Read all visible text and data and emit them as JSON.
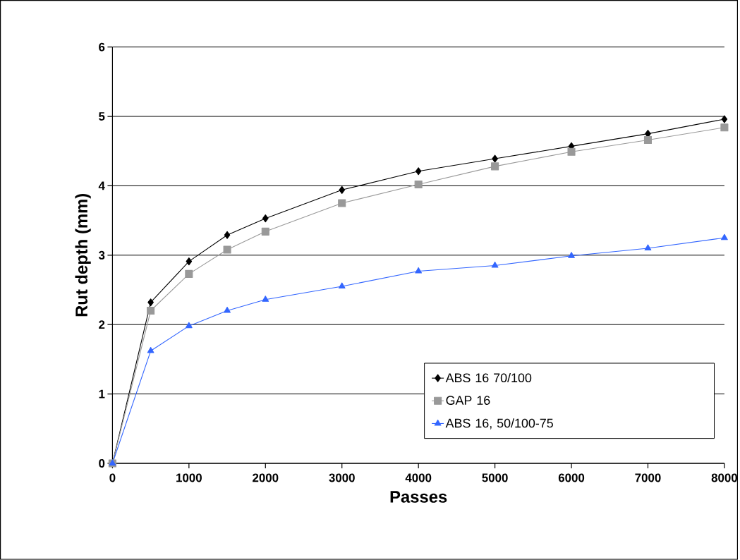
{
  "chart_data": {
    "type": "line",
    "xlabel": "Passes",
    "ylabel": "Rut depth (mm)",
    "x": [
      0,
      500,
      1000,
      1500,
      2000,
      3000,
      4000,
      5000,
      6000,
      7000,
      8000
    ],
    "series": [
      {
        "name": "ABS 16 70/100",
        "color": "#000000",
        "marker": "diamond",
        "values": [
          0,
          2.32,
          2.91,
          3.29,
          3.53,
          3.94,
          4.21,
          4.39,
          4.57,
          4.75,
          4.96
        ]
      },
      {
        "name": "GAP 16",
        "color": "#999999",
        "marker": "square",
        "values": [
          0,
          2.2,
          2.73,
          3.08,
          3.34,
          3.75,
          4.02,
          4.28,
          4.49,
          4.66,
          4.84
        ]
      },
      {
        "name": "ABS 16, 50/100-75",
        "color": "#3366ff",
        "marker": "triangle",
        "values": [
          0,
          1.62,
          1.98,
          2.2,
          2.36,
          2.55,
          2.77,
          2.85,
          2.99,
          3.1,
          3.25
        ]
      }
    ],
    "xlim": [
      0,
      8000
    ],
    "ylim": [
      0,
      6
    ],
    "xticks": [
      0,
      1000,
      2000,
      3000,
      4000,
      5000,
      6000,
      7000,
      8000
    ],
    "yticks": [
      0,
      1,
      2,
      3,
      4,
      5,
      6
    ],
    "grid": "y",
    "legend": "bottom right",
    "line_style": "solid"
  }
}
